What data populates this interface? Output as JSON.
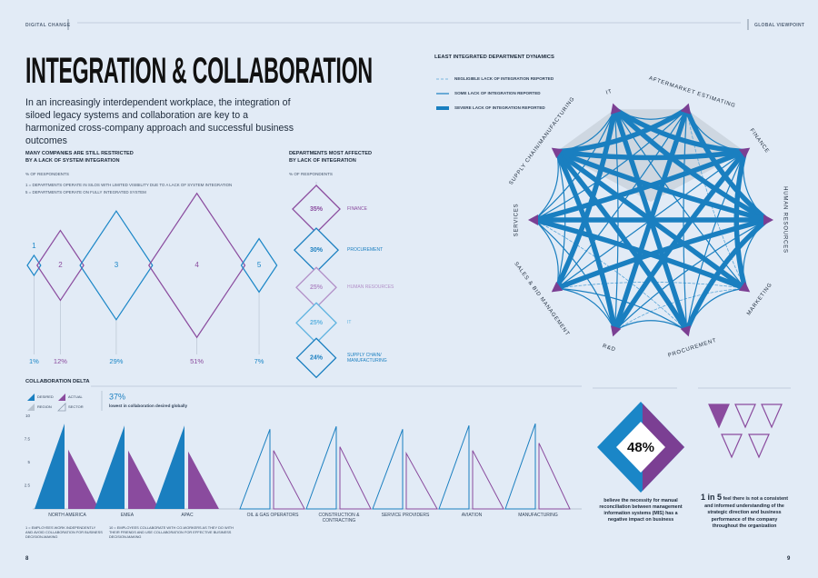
{
  "header": {
    "left": "DIGITAL CHANGE",
    "right": "GLOBAL VIEWPOINT"
  },
  "title": "INTEGRATION & COLLABORATION",
  "intro": "In an increasingly interdependent workplace, the integration of siloed legacy systems and collaboration are key to a harmonized cross-company approach and successful business outcomes",
  "integration": {
    "title": [
      "MANY COMPANIES ARE STILL RESTRICTED",
      "BY A LACK OF SYSTEM INTEGRATION"
    ],
    "unit": "% OF RESPONDENTS",
    "notes": [
      "1 = DEPARTMENTS OPERATE IN SILOS WITH LIMITED VISIBILITY DUE TO A LACK OF SYSTEM INTEGRATION",
      "5 = DEPARTMENTS OPERATE ON FULLY INTEGRATED SYSTEM"
    ],
    "levels": [
      "1",
      "2",
      "3",
      "4",
      "5"
    ],
    "values": [
      1,
      12,
      29,
      51,
      7
    ],
    "value_labels": [
      "1%",
      "12%",
      "29%",
      "51%",
      "7%"
    ],
    "colors": [
      "#1a86c7",
      "#8a4b9e",
      "#1a86c7",
      "#8a4b9e",
      "#1a86c7"
    ]
  },
  "departments": {
    "title": [
      "DEPARTMENTS MOST AFFECTED",
      "BY LACK OF INTEGRATION"
    ],
    "unit": "% OF RESPONDENTS",
    "categories": [
      "FINANCE",
      "PROCUREMENT",
      "HUMAN RESOURCES",
      "IT",
      "SUPPLY CHAIN/ MANUFACTURING"
    ],
    "values": [
      35,
      30,
      25,
      25,
      24
    ],
    "value_labels": [
      "35%",
      "30%",
      "25%",
      "25%",
      "24%"
    ],
    "colors": [
      "#8a4b9e",
      "#1a7fc0",
      "#b290c8",
      "#5fb3e0",
      "#1a7fc0"
    ]
  },
  "network": {
    "title": "LEAST INTEGRATED DEPARTMENT DYNAMICS",
    "legend": [
      "NEGLIGIBLE LACK OF INTEGRATION REPORTED",
      "SOME LACK OF INTEGRATION REPORTED",
      "SEVERE LACK OF INTEGRATION REPORTED"
    ],
    "nodes": [
      "IT",
      "AFTERMARKET ESTIMATING",
      "FINANCE",
      "HUMAN RESOURCES",
      "MARKETING",
      "PROCUREMENT",
      "R&D",
      "SALES & BID MANAGEMENT",
      "SERVICES",
      "SUPPLY CHAIN/MANUFACTURING"
    ],
    "links": [
      [
        0,
        1,
        1
      ],
      [
        0,
        2,
        2
      ],
      [
        0,
        3,
        2
      ],
      [
        0,
        4,
        1
      ],
      [
        0,
        5,
        2
      ],
      [
        0,
        6,
        1
      ],
      [
        0,
        7,
        2
      ],
      [
        0,
        8,
        1
      ],
      [
        0,
        9,
        1
      ],
      [
        1,
        2,
        1
      ],
      [
        1,
        3,
        2
      ],
      [
        1,
        4,
        0
      ],
      [
        1,
        5,
        1
      ],
      [
        1,
        6,
        2
      ],
      [
        1,
        7,
        1
      ],
      [
        1,
        8,
        1
      ],
      [
        1,
        9,
        2
      ],
      [
        2,
        3,
        1
      ],
      [
        2,
        4,
        2
      ],
      [
        2,
        5,
        1
      ],
      [
        2,
        6,
        2
      ],
      [
        2,
        7,
        1
      ],
      [
        2,
        8,
        2
      ],
      [
        2,
        9,
        2
      ],
      [
        3,
        4,
        1
      ],
      [
        3,
        5,
        2
      ],
      [
        3,
        6,
        1
      ],
      [
        3,
        7,
        2
      ],
      [
        3,
        8,
        2
      ],
      [
        3,
        9,
        2
      ],
      [
        4,
        5,
        1
      ],
      [
        4,
        6,
        0
      ],
      [
        4,
        7,
        0
      ],
      [
        4,
        8,
        2
      ],
      [
        4,
        9,
        2
      ],
      [
        5,
        6,
        1
      ],
      [
        5,
        7,
        1
      ],
      [
        5,
        8,
        0
      ],
      [
        5,
        9,
        2
      ],
      [
        6,
        7,
        1
      ],
      [
        6,
        8,
        1
      ],
      [
        6,
        9,
        2
      ],
      [
        7,
        8,
        1
      ],
      [
        7,
        9,
        1
      ],
      [
        8,
        9,
        1
      ]
    ]
  },
  "collaboration": {
    "title": "COLLABORATION DELTA",
    "legend": [
      "DESIRED",
      "ACTUAL",
      "REGION",
      "SECTOR"
    ],
    "highlight": {
      "label": "37%",
      "text": "lowest in collaboration desired globally"
    },
    "colors": {
      "desired": "#1a7fc0",
      "actual": "#8a4b9e"
    },
    "ylim": [
      0,
      10
    ],
    "yticks": [
      2.5,
      5,
      7.5,
      10
    ],
    "regions": {
      "categories": [
        "NORTH AMERICA",
        "EMEA",
        "APAC"
      ],
      "desired": [
        9.2,
        9.0,
        9.0
      ],
      "actual": [
        6.4,
        6.3,
        6.2
      ]
    },
    "sectors": {
      "categories": [
        "OIL & GAS OPERATORS",
        "CONSTRUCTION & CONTRACTING",
        "SERVICE PROVIDERS",
        "AVIATION",
        "MANUFACTURING"
      ],
      "desired": [
        8.6,
        8.9,
        8.6,
        9.0,
        9.2
      ],
      "actual": [
        6.3,
        6.7,
        6.0,
        6.3,
        7.1
      ]
    },
    "notes": [
      "1 = EMPLOYEES WORK INDEPENDENTLY AND AVOID COLLABORATION FOR BUSINESS DECISION-MAKING",
      "10 = EMPLOYEES COLLABORATE WITH CO-WORKERS AS THEY DO WITH THEIR FRIENDS AND USE COLLABORATION FOR EFFECTIVE BUSINESS DECISION-MAKING"
    ]
  },
  "stat": {
    "value": 48,
    "label": "48%",
    "text": "believe the necessity for manual reconciliation between management information systems (MIS) has a negative impact on business"
  },
  "ratio": {
    "label": "1 in 5",
    "text": "feel there is not a consistent and informed understanding of the strategic direction and business performance of the company throughout the organization"
  },
  "pages": [
    "8",
    "9"
  ]
}
